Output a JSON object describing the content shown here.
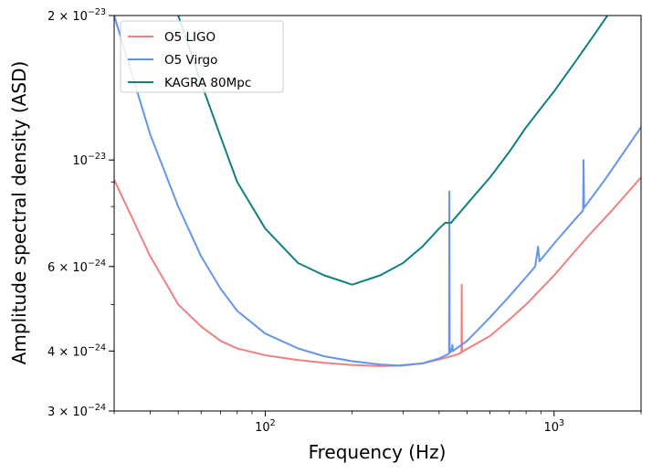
{
  "chart_data": {
    "type": "line",
    "xlabel": "Frequency (Hz)",
    "ylabel": "Amplitude spectral density (ASD)",
    "xscale": "log",
    "yscale": "log",
    "xlim": [
      30,
      2000
    ],
    "ylim": [
      3e-24,
      2e-23
    ],
    "legend_position": "top-left",
    "x_ticks": [
      {
        "value": 100,
        "base": "10",
        "exp": "2"
      },
      {
        "value": 1000,
        "base": "10",
        "exp": "3"
      }
    ],
    "y_ticks": [
      {
        "value": 3e-24,
        "mant": "3 × 10",
        "exp": "−24"
      },
      {
        "value": 4e-24,
        "mant": "4 × 10",
        "exp": "−24"
      },
      {
        "value": 6e-24,
        "mant": "6 × 10",
        "exp": "−24"
      },
      {
        "value": 1e-23,
        "mant": "10",
        "exp": "−23"
      },
      {
        "value": 2e-23,
        "mant": "2 × 10",
        "exp": "−23"
      }
    ],
    "series": [
      {
        "name": "O5 LIGO",
        "color": "#f08080",
        "points": [
          [
            30,
            9.1e-24
          ],
          [
            40,
            6.3e-24
          ],
          [
            50,
            5e-24
          ],
          [
            60,
            4.5e-24
          ],
          [
            70,
            4.2e-24
          ],
          [
            80,
            4.05e-24
          ],
          [
            100,
            3.92e-24
          ],
          [
            130,
            3.83e-24
          ],
          [
            160,
            3.78e-24
          ],
          [
            200,
            3.74e-24
          ],
          [
            250,
            3.72e-24
          ],
          [
            300,
            3.73e-24
          ],
          [
            350,
            3.77e-24
          ],
          [
            400,
            3.84e-24
          ],
          [
            460,
            3.93e-24
          ],
          [
            478,
            3.97e-24
          ],
          [
            479,
            5.5e-24
          ],
          [
            480,
            3.98e-24
          ],
          [
            500,
            4.04e-24
          ],
          [
            600,
            4.3e-24
          ],
          [
            700,
            4.65e-24
          ],
          [
            800,
            5e-24
          ],
          [
            1000,
            5.75e-24
          ],
          [
            1300,
            6.9e-24
          ],
          [
            1600,
            7.9e-24
          ],
          [
            2000,
            9.2e-24
          ]
        ]
      },
      {
        "name": "O5 Virgo",
        "color": "#6495ed",
        "points": [
          [
            30,
            2e-23
          ],
          [
            40,
            1.13e-23
          ],
          [
            50,
            8e-24
          ],
          [
            60,
            6.3e-24
          ],
          [
            70,
            5.4e-24
          ],
          [
            80,
            4.85e-24
          ],
          [
            100,
            4.35e-24
          ],
          [
            130,
            4.05e-24
          ],
          [
            160,
            3.9e-24
          ],
          [
            200,
            3.81e-24
          ],
          [
            250,
            3.75e-24
          ],
          [
            290,
            3.73e-24
          ],
          [
            350,
            3.77e-24
          ],
          [
            400,
            3.86e-24
          ],
          [
            430,
            3.94e-24
          ],
          [
            433,
            3.95e-24
          ],
          [
            434,
            8.6e-24
          ],
          [
            435,
            3.97e-24
          ],
          [
            440,
            3.99e-24
          ],
          [
            445,
            4.12e-24
          ],
          [
            446,
            4e-24
          ],
          [
            500,
            4.2e-24
          ],
          [
            600,
            4.7e-24
          ],
          [
            700,
            5.2e-24
          ],
          [
            800,
            5.7e-24
          ],
          [
            860,
            6e-24
          ],
          [
            880,
            6.6e-24
          ],
          [
            890,
            6.15e-24
          ],
          [
            1000,
            6.7e-24
          ],
          [
            1200,
            7.6e-24
          ],
          [
            1260,
            7.85e-24
          ],
          [
            1265,
            1e-23
          ],
          [
            1270,
            7.95e-24
          ],
          [
            1500,
            9.1e-24
          ],
          [
            2000,
            1.17e-23
          ]
        ]
      },
      {
        "name": " KAGRA 80Mpc",
        "color": "#118080",
        "points": [
          [
            50,
            2e-23
          ],
          [
            60,
            1.45e-23
          ],
          [
            70,
            1.12e-23
          ],
          [
            80,
            9e-24
          ],
          [
            100,
            7.2e-24
          ],
          [
            130,
            6.1e-24
          ],
          [
            160,
            5.75e-24
          ],
          [
            200,
            5.5e-24
          ],
          [
            250,
            5.75e-24
          ],
          [
            300,
            6.1e-24
          ],
          [
            350,
            6.6e-24
          ],
          [
            400,
            7.2e-24
          ],
          [
            420,
            7.4e-24
          ],
          [
            440,
            7.4e-24
          ],
          [
            500,
            8.1e-24
          ],
          [
            600,
            9.2e-24
          ],
          [
            700,
            1.04e-23
          ],
          [
            800,
            1.17e-23
          ],
          [
            1000,
            1.39e-23
          ],
          [
            1200,
            1.62e-23
          ],
          [
            1400,
            1.85e-23
          ],
          [
            1530,
            2e-23
          ]
        ]
      }
    ]
  }
}
